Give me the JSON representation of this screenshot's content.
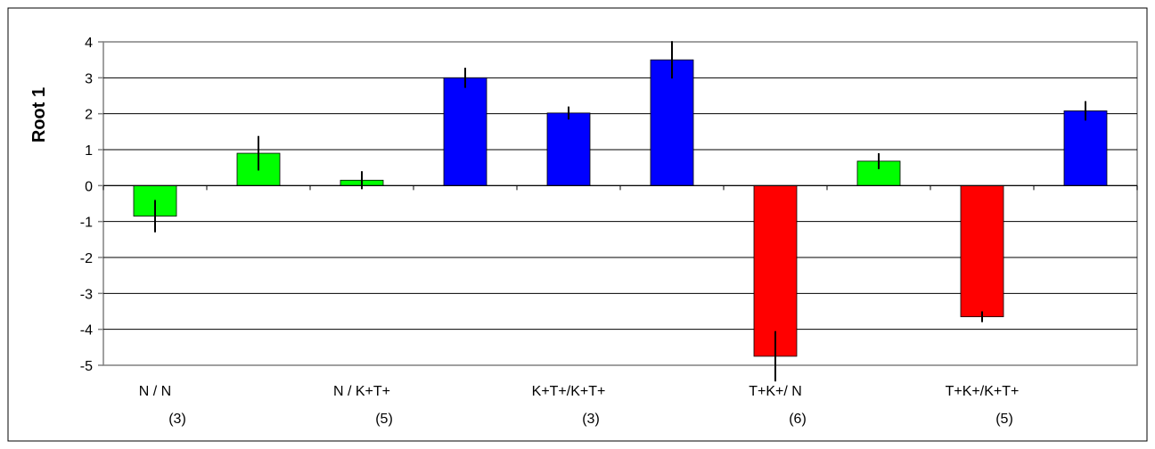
{
  "chart_data": {
    "type": "bar",
    "title": "",
    "xlabel": "",
    "ylabel": "Root 1",
    "ylim": [
      -5,
      4
    ],
    "yticks": [
      4,
      3,
      2,
      1,
      0,
      -1,
      -2,
      -3,
      -4,
      -5
    ],
    "grid": true,
    "legend": "none",
    "category_labels": [
      {
        "line1": "N / N",
        "line2": "(3)"
      },
      {
        "line1": "N / K+T+",
        "line2": "(5)"
      },
      {
        "line1": "K+T+/K+T+",
        "line2": "(3)"
      },
      {
        "line1": "T+K+/ N",
        "line2": "(6)"
      },
      {
        "line1": "T+K+/K+T+",
        "line2": "(5)"
      }
    ],
    "bars": [
      {
        "value": -0.85,
        "error": 0.45,
        "color": "#00ff00"
      },
      {
        "value": 0.9,
        "error": 0.48,
        "color": "#00ff00"
      },
      {
        "value": 0.15,
        "error": 0.25,
        "color": "#00ff00"
      },
      {
        "value": 3.0,
        "error": 0.28,
        "color": "#0000ff"
      },
      {
        "value": 2.02,
        "error": 0.18,
        "color": "#0000ff"
      },
      {
        "value": 3.5,
        "error": 0.52,
        "color": "#0000ff"
      },
      {
        "value": -4.75,
        "error": 0.7,
        "color": "#ff0000"
      },
      {
        "value": 0.68,
        "error": 0.22,
        "color": "#00ff00"
      },
      {
        "value": -3.65,
        "error": 0.15,
        "color": "#ff0000"
      },
      {
        "value": 2.08,
        "error": 0.27,
        "color": "#0000ff"
      }
    ]
  }
}
